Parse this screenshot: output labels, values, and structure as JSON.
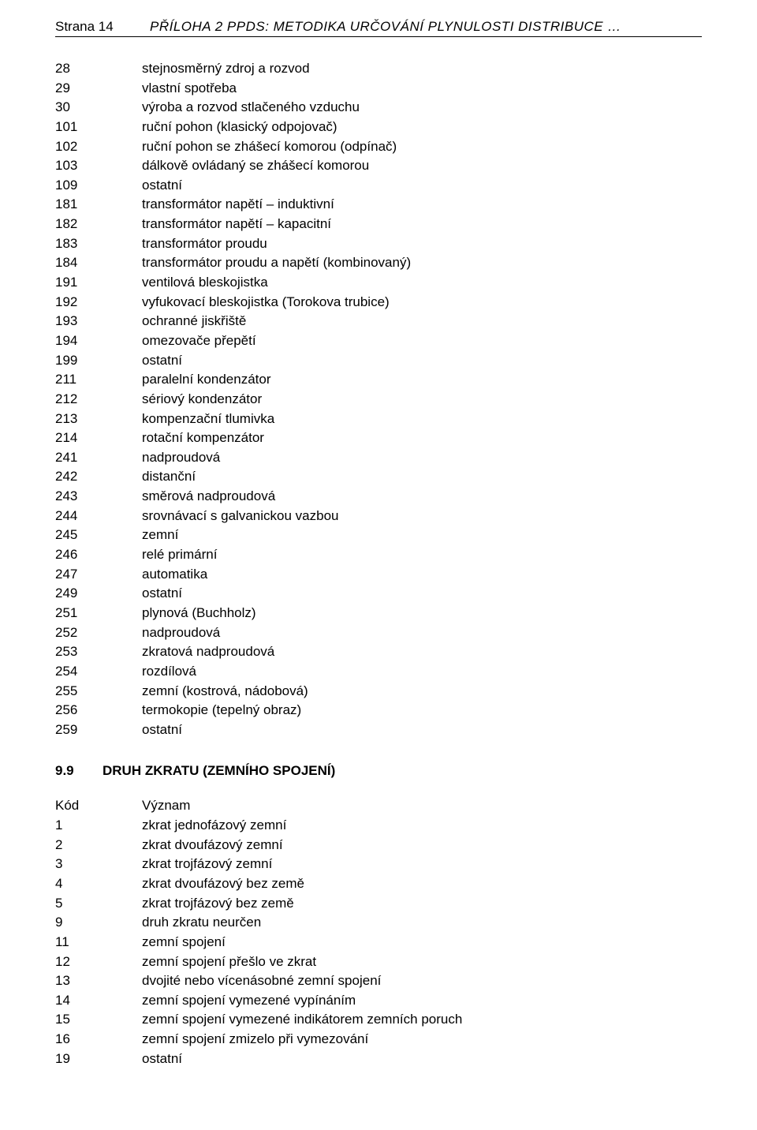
{
  "header": {
    "page_label": "Strana 14",
    "title": "PŘÍLOHA 2 PPDS: METODIKA URČOVÁNÍ PLYNULOSTI DISTRIBUCE …"
  },
  "list1": [
    {
      "code": "28",
      "desc": "stejnosměrný zdroj a rozvod"
    },
    {
      "code": "29",
      "desc": "vlastní spotřeba"
    },
    {
      "code": "30",
      "desc": "výroba a rozvod stlačeného vzduchu"
    },
    {
      "code": "101",
      "desc": "ruční pohon (klasický odpojovač)"
    },
    {
      "code": "102",
      "desc": "ruční pohon se zhášecí komorou (odpínač)"
    },
    {
      "code": "103",
      "desc": "dálkově ovládaný se zhášecí komorou"
    },
    {
      "code": "109",
      "desc": "ostatní"
    },
    {
      "code": "181",
      "desc": "transformátor napětí – induktivní"
    },
    {
      "code": "182",
      "desc": "transformátor napětí – kapacitní"
    },
    {
      "code": "183",
      "desc": "transformátor proudu"
    },
    {
      "code": "184",
      "desc": "transformátor proudu a napětí (kombinovaný)"
    },
    {
      "code": "191",
      "desc": "ventilová bleskojistka"
    },
    {
      "code": "192",
      "desc": "vyfukovací bleskojistka (Torokova trubice)"
    },
    {
      "code": "193",
      "desc": "ochranné jiskřiště"
    },
    {
      "code": "194",
      "desc": "omezovače přepětí"
    },
    {
      "code": "199",
      "desc": "ostatní"
    },
    {
      "code": "211",
      "desc": "paralelní kondenzátor"
    },
    {
      "code": "212",
      "desc": "sériový kondenzátor"
    },
    {
      "code": "213",
      "desc": "kompenzační tlumivka"
    },
    {
      "code": "214",
      "desc": "rotační kompenzátor"
    },
    {
      "code": "241",
      "desc": "nadproudová"
    },
    {
      "code": "242",
      "desc": "distanční"
    },
    {
      "code": "243",
      "desc": "směrová nadproudová"
    },
    {
      "code": "244",
      "desc": "srovnávací s galvanickou vazbou"
    },
    {
      "code": "245",
      "desc": "zemní"
    },
    {
      "code": "246",
      "desc": "relé primární"
    },
    {
      "code": "247",
      "desc": "automatika"
    },
    {
      "code": "249",
      "desc": "ostatní"
    },
    {
      "code": "251",
      "desc": "plynová (Buchholz)"
    },
    {
      "code": "252",
      "desc": "nadproudová"
    },
    {
      "code": "253",
      "desc": "zkratová nadproudová"
    },
    {
      "code": "254",
      "desc": "rozdílová"
    },
    {
      "code": "255",
      "desc": "zemní (kostrová, nádobová)"
    },
    {
      "code": "256",
      "desc": "termokopie (tepelný obraz)"
    },
    {
      "code": "259",
      "desc": "ostatní"
    }
  ],
  "section2": {
    "num": "9.9",
    "title": "DRUH ZKRATU (ZEMNÍHO SPOJENÍ)"
  },
  "list2_header": {
    "code": "Kód",
    "desc": "Význam"
  },
  "list2": [
    {
      "code": "1",
      "desc": "zkrat jednofázový zemní"
    },
    {
      "code": "2",
      "desc": "zkrat dvoufázový zemní"
    },
    {
      "code": "3",
      "desc": "zkrat trojfázový zemní"
    },
    {
      "code": "4",
      "desc": "zkrat dvoufázový bez země"
    },
    {
      "code": "5",
      "desc": "zkrat trojfázový bez země"
    },
    {
      "code": "9",
      "desc": "druh zkratu neurčen"
    },
    {
      "code": "11",
      "desc": "zemní spojení"
    },
    {
      "code": "12",
      "desc": "zemní spojení přešlo ve zkrat"
    },
    {
      "code": "13",
      "desc": "dvojité nebo vícenásobné zemní spojení"
    },
    {
      "code": "14",
      "desc": "zemní spojení vymezené vypínáním"
    },
    {
      "code": "15",
      "desc": "zemní spojení vymezené indikátorem zemních poruch"
    },
    {
      "code": "16",
      "desc": "zemní spojení zmizelo při vymezování"
    },
    {
      "code": "19",
      "desc": "ostatní"
    }
  ]
}
